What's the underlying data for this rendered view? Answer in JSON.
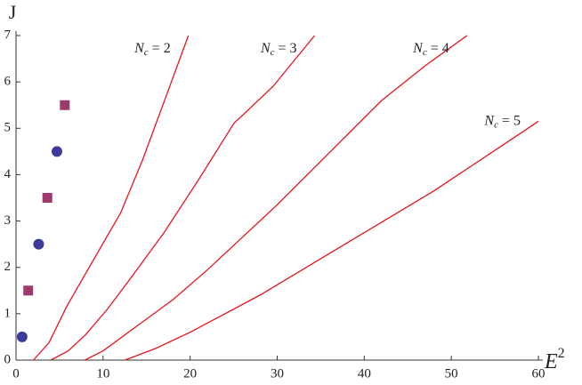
{
  "chart_data": {
    "type": "line",
    "x_label": [
      "E",
      "2"
    ],
    "y_label": "J",
    "xlim": [
      0,
      60
    ],
    "ylim": [
      0,
      7
    ],
    "xticks": [
      0,
      10,
      20,
      30,
      40,
      50,
      60
    ],
    "yticks": [
      0,
      1,
      2,
      3,
      4,
      5,
      6,
      7
    ],
    "series": [
      {
        "type": "scatter",
        "marker": "circle",
        "color": "#3b3b9a",
        "x": [
          0.7,
          2.6,
          4.7
        ],
        "values": [
          0.5,
          2.5,
          4.5
        ]
      },
      {
        "type": "scatter",
        "marker": "square",
        "color": "#9e3a6e",
        "x": [
          1.4,
          3.6,
          5.6
        ],
        "values": [
          1.5,
          3.5,
          5.5
        ]
      },
      {
        "type": "line",
        "color": "#e8141c",
        "label_parts": [
          "N",
          "c",
          "= 2"
        ],
        "x": [
          2,
          3.8,
          5.8,
          8.4,
          12,
          14.5,
          17,
          19.8
        ],
        "values": [
          0,
          0.38,
          1.15,
          2.0,
          3.17,
          4.3,
          5.57,
          7
        ]
      },
      {
        "type": "line",
        "color": "#e8141c",
        "label_parts": [
          "N",
          "c",
          "= 3"
        ],
        "x": [
          4,
          6,
          8,
          10.5,
          13.5,
          17,
          21,
          25,
          29.5,
          34.3
        ],
        "values": [
          0,
          0.2,
          0.55,
          1.1,
          1.85,
          2.75,
          3.9,
          5.1,
          5.9,
          7
        ]
      },
      {
        "type": "line",
        "color": "#e8141c",
        "label_parts": [
          "N",
          "c",
          "= 4"
        ],
        "x": [
          7.9,
          10,
          14,
          18,
          22,
          26,
          30,
          34,
          38,
          42,
          47,
          51.8
        ],
        "values": [
          0,
          0.2,
          0.75,
          1.3,
          1.95,
          2.65,
          3.35,
          4.1,
          4.85,
          5.6,
          6.35,
          7
        ]
      },
      {
        "type": "line",
        "color": "#e8141c",
        "label_parts": [
          "N",
          "c",
          "= 5"
        ],
        "x": [
          12.5,
          16,
          20,
          24,
          28,
          32,
          36,
          40,
          44,
          48,
          52,
          56,
          60
        ],
        "values": [
          0,
          0.25,
          0.6,
          1.0,
          1.4,
          1.85,
          2.3,
          2.75,
          3.2,
          3.65,
          4.15,
          4.65,
          5.15
        ]
      }
    ]
  }
}
